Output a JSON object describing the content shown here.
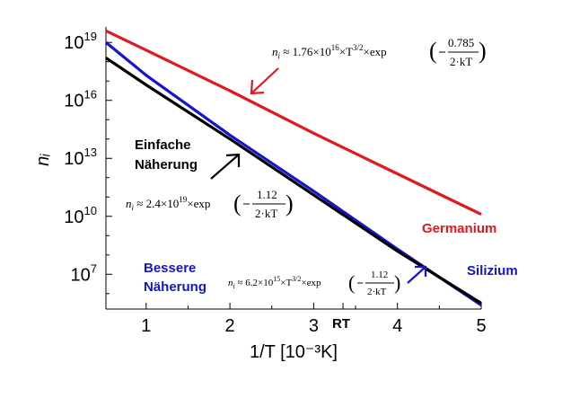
{
  "chart_data": {
    "type": "line",
    "xlabel": "1/T [10⁻³K]",
    "ylabel": "nᵢ",
    "xlim": [
      0.52,
      5.0
    ],
    "ylim_log10": [
      5.2,
      19.8
    ],
    "y_scale": "log",
    "x_ticks": [
      {
        "value": 1,
        "label": "1"
      },
      {
        "value": 2,
        "label": "2"
      },
      {
        "value": 3,
        "label": "3"
      },
      {
        "value": 4,
        "label": "4"
      },
      {
        "value": 5,
        "label": "5"
      }
    ],
    "rt_marker": {
      "value": 3.35,
      "label": "RT"
    },
    "y_ticks": [
      {
        "exp": 7,
        "base": "10",
        "sup": "7"
      },
      {
        "exp": 10,
        "base": "10",
        "sup": "10"
      },
      {
        "exp": 13,
        "base": "10",
        "sup": "13"
      },
      {
        "exp": 16,
        "base": "10",
        "sup": "16"
      },
      {
        "exp": 19,
        "base": "10",
        "sup": "19"
      }
    ],
    "series": [
      {
        "name": "Germanium",
        "color": "#e0191e",
        "x": [
          0.52,
          1.0,
          2.0,
          3.0,
          4.0,
          5.0
        ],
        "y_log10": [
          19.6,
          18.6,
          16.5,
          14.3,
          12.2,
          10.1
        ]
      },
      {
        "name": "Silizium",
        "color": "#1414d2",
        "x": [
          0.52,
          1.0,
          2.0,
          3.0,
          4.0,
          5.0
        ],
        "y_log10": [
          19.0,
          17.3,
          14.2,
          11.3,
          8.3,
          5.4
        ]
      },
      {
        "name": "Einfache Näherung",
        "color": "#000000",
        "x": [
          0.52,
          1.0,
          2.0,
          3.0,
          4.0,
          5.0
        ],
        "y_log10": [
          18.2,
          16.8,
          14.0,
          11.1,
          8.2,
          5.5
        ]
      }
    ],
    "annotations": {
      "germanium_label": "Germanium",
      "silizium_label": "Silizium",
      "einfache_line1": "Einfache",
      "einfache_line2": "Näherung",
      "bessere_line1": "Bessere",
      "bessere_line2": "Näherung"
    },
    "formulas": {
      "germanium": {
        "lhs": "n",
        "sub": "i",
        "body1": " ≈ 1.76×10",
        "sup1": "16",
        "body2": "×T",
        "sup2": "3/2",
        "body3": "×exp",
        "numer": "0.785",
        "denom": "2·kT"
      },
      "einfache": {
        "lhs": "n",
        "sub": "i",
        "body1": " ≈ 2.4×10",
        "sup1": "19",
        "body2": "×exp",
        "numer": "1.12",
        "denom": "2·kT"
      },
      "bessere": {
        "lhs": "n",
        "sub": "i",
        "body1": " ≈ 6.2×10",
        "sup1": "15",
        "body2": "×T",
        "sup2": "3/2",
        "body3": "×exp",
        "numer": "1.12",
        "denom": "2·kT"
      }
    },
    "colors": {
      "germanium": "#e0191e",
      "silizium": "#1414d2",
      "einfache": "#000000"
    }
  }
}
